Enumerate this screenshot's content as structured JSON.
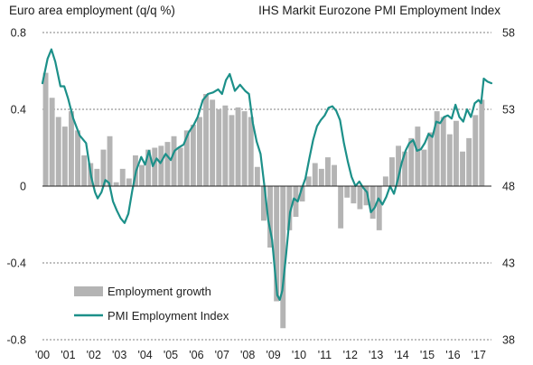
{
  "chart_data": {
    "type": "bar+line",
    "title_left": "Euro area employment (q/q %)",
    "title_right": "IHS Markit Eurozone PMI  Employment Index",
    "left_axis": {
      "range": [
        -0.8,
        0.8
      ],
      "ticks": [
        -0.8,
        -0.4,
        0,
        0.4,
        0.8
      ],
      "tick_labels": [
        "-0.8",
        "-0.4",
        "0",
        "0.4",
        "0.8"
      ]
    },
    "right_axis": {
      "range": [
        38,
        58
      ],
      "ticks": [
        38,
        43,
        48,
        53,
        58
      ],
      "tick_labels": [
        "38",
        "43",
        "48",
        "53",
        "58"
      ]
    },
    "x_axis": {
      "range": [
        2000.0,
        2017.5
      ],
      "year_labels": [
        "'00",
        "'01",
        "'02",
        "'03",
        "'04",
        "'05",
        "'06",
        "'07",
        "'08",
        "'09",
        "'10",
        "'11",
        "'12",
        "'13",
        "'14",
        "'15",
        "'16",
        "'17"
      ]
    },
    "grid": "horizontal dashed at left-axis ticks",
    "legend": {
      "position": "bottom-left",
      "items": [
        "Employment growth",
        "PMI Employment Index"
      ]
    },
    "colors": {
      "bars": "#b4b4b4",
      "line": "#1c9089"
    },
    "series": [
      {
        "name": "Employment growth",
        "kind": "bar",
        "axis": "left",
        "quarters": [
          "2000Q1",
          "2000Q2",
          "2000Q3",
          "2000Q4",
          "2001Q1",
          "2001Q2",
          "2001Q3",
          "2001Q4",
          "2002Q1",
          "2002Q2",
          "2002Q3",
          "2002Q4",
          "2003Q1",
          "2003Q2",
          "2003Q3",
          "2003Q4",
          "2004Q1",
          "2004Q2",
          "2004Q3",
          "2004Q4",
          "2005Q1",
          "2005Q2",
          "2005Q3",
          "2005Q4",
          "2006Q1",
          "2006Q2",
          "2006Q3",
          "2006Q4",
          "2007Q1",
          "2007Q2",
          "2007Q3",
          "2007Q4",
          "2008Q1",
          "2008Q2",
          "2008Q3",
          "2008Q4",
          "2009Q1",
          "2009Q2",
          "2009Q3",
          "2009Q4",
          "2010Q1",
          "2010Q2",
          "2010Q3",
          "2010Q4",
          "2011Q1",
          "2011Q2",
          "2011Q3",
          "2011Q4",
          "2012Q1",
          "2012Q2",
          "2012Q3",
          "2012Q4",
          "2013Q1",
          "2013Q2",
          "2013Q3",
          "2013Q4",
          "2014Q1",
          "2014Q2",
          "2014Q3",
          "2014Q4",
          "2015Q1",
          "2015Q2",
          "2015Q3",
          "2015Q4",
          "2016Q1",
          "2016Q2",
          "2016Q3",
          "2016Q4",
          "2017Q1"
        ],
        "values": [
          0.59,
          0.46,
          0.36,
          0.31,
          0.39,
          0.29,
          0.16,
          0.12,
          0.09,
          0.19,
          0.26,
          0.02,
          0.09,
          0.04,
          0.16,
          0.11,
          0.19,
          0.2,
          0.21,
          0.23,
          0.26,
          0.2,
          0.29,
          0.32,
          0.36,
          0.48,
          0.45,
          0.4,
          0.42,
          0.37,
          0.41,
          0.39,
          0.36,
          0.1,
          -0.18,
          -0.32,
          -0.6,
          -0.74,
          -0.23,
          -0.16,
          -0.08,
          0.05,
          0.12,
          0.09,
          0.15,
          0.11,
          -0.22,
          -0.06,
          -0.09,
          -0.12,
          -0.1,
          -0.17,
          -0.23,
          0.05,
          0.15,
          0.21,
          0.18,
          0.25,
          0.31,
          0.19,
          0.28,
          0.39,
          0.36,
          0.27,
          0.34,
          0.18,
          0.25,
          0.37,
          0.45
        ]
      },
      {
        "name": "PMI Employment Index",
        "kind": "line",
        "axis": "right",
        "x_year": [
          2000.0,
          2000.2,
          2000.35,
          2000.5,
          2000.7,
          2000.85,
          2001.0,
          2001.2,
          2001.45,
          2001.7,
          2001.9,
          2002.05,
          2002.15,
          2002.3,
          2002.45,
          2002.6,
          2002.75,
          2002.9,
          2003.05,
          2003.2,
          2003.35,
          2003.5,
          2003.65,
          2003.85,
          2004.0,
          2004.15,
          2004.3,
          2004.45,
          2004.6,
          2004.8,
          2005.0,
          2005.15,
          2005.3,
          2005.5,
          2005.7,
          2005.9,
          2006.05,
          2006.25,
          2006.45,
          2006.65,
          2006.85,
          2007.0,
          2007.15,
          2007.3,
          2007.5,
          2007.7,
          2007.9,
          2008.05,
          2008.2,
          2008.35,
          2008.5,
          2008.65,
          2008.8,
          2008.95,
          2009.05,
          2009.15,
          2009.25,
          2009.35,
          2009.5,
          2009.65,
          2009.8,
          2009.95,
          2010.1,
          2010.25,
          2010.4,
          2010.55,
          2010.7,
          2010.85,
          2011.0,
          2011.15,
          2011.3,
          2011.45,
          2011.6,
          2011.75,
          2011.9,
          2012.05,
          2012.2,
          2012.35,
          2012.5,
          2012.65,
          2012.8,
          2012.95,
          2013.1,
          2013.25,
          2013.4,
          2013.55,
          2013.7,
          2013.85,
          2014.0,
          2014.15,
          2014.3,
          2014.45,
          2014.6,
          2014.75,
          2014.9,
          2015.05,
          2015.2,
          2015.35,
          2015.5,
          2015.65,
          2015.8,
          2015.95,
          2016.1,
          2016.25,
          2016.4,
          2016.55,
          2016.7,
          2016.85,
          2017.0,
          2017.1,
          2017.2,
          2017.35,
          2017.5
        ],
        "y": [
          54.7,
          56.3,
          56.9,
          56.1,
          54.5,
          54.5,
          53.7,
          52.4,
          51.3,
          50.8,
          48.6,
          47.6,
          47.2,
          47.6,
          48.4,
          48.2,
          47.0,
          46.4,
          45.9,
          45.6,
          46.2,
          47.7,
          49.0,
          49.9,
          49.4,
          50.3,
          49.3,
          49.8,
          49.5,
          50.1,
          49.7,
          50.3,
          50.5,
          50.7,
          51.5,
          52.0,
          52.5,
          53.6,
          54.0,
          54.1,
          54.3,
          54.0,
          54.9,
          55.3,
          54.2,
          54.6,
          54.2,
          54.0,
          52.1,
          50.9,
          50.1,
          48.0,
          45.8,
          44.5,
          42.7,
          40.9,
          40.6,
          41.2,
          43.6,
          46.3,
          47.2,
          47.0,
          47.8,
          48.5,
          49.8,
          51.0,
          51.9,
          52.3,
          52.6,
          53.1,
          53.2,
          52.9,
          52.3,
          50.8,
          49.6,
          48.6,
          48.0,
          48.3,
          47.9,
          47.6,
          46.3,
          46.6,
          47.2,
          46.8,
          47.3,
          48.0,
          47.5,
          48.4,
          49.5,
          50.3,
          50.8,
          51.0,
          50.3,
          50.4,
          50.8,
          51.4,
          51.2,
          52.2,
          52.1,
          52.5,
          52.6,
          52.4,
          53.3,
          52.5,
          52.2,
          53.0,
          52.5,
          53.4,
          53.6,
          53.4,
          55.0,
          54.8,
          54.7
        ]
      }
    ]
  }
}
